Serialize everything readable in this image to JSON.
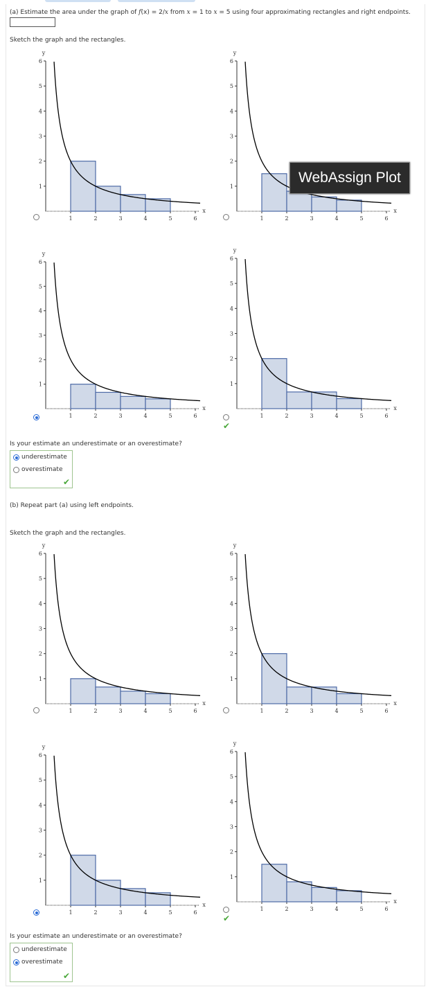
{
  "part_a": {
    "question_prefix": "(a) Estimate the area under the graph of ",
    "f_label": "f",
    "question_mid": "(x) = 2/",
    "x_var": "x",
    "question_from": " from ",
    "x_eq_1": "x",
    "question_eq1": " = 1 to ",
    "x_eq_5": "x",
    "question_end": " = 5 using four approximating rectangles and right endpoints.",
    "sketch_instruction": "Sketch the graph and the rectangles.",
    "estimate_question": "Is your estimate an underestimate or an overestimate?",
    "options": [
      "underestimate",
      "overestimate"
    ],
    "selected": "underestimate"
  },
  "part_b": {
    "question": "(b) Repeat part (a) using left endpoints.",
    "sketch_instruction": "Sketch the graph and the rectangles.",
    "estimate_question": "Is your estimate an underestimate or an overestimate?",
    "options": [
      "underestimate",
      "overestimate"
    ],
    "selected": "overestimate"
  },
  "tooltip": "WebAssign Plot",
  "axis": {
    "x_label": "x",
    "y_label": "y",
    "x_ticks": [
      "1",
      "2",
      "3",
      "4",
      "5",
      "6"
    ],
    "y_ticks": [
      "1",
      "2",
      "3",
      "4",
      "5",
      "6"
    ]
  },
  "plots": [
    {
      "id": "a1",
      "rect_heights": [
        2,
        1,
        0.6667,
        0.5
      ],
      "selected": false,
      "correct": false
    },
    {
      "id": "a2",
      "rect_heights": [
        1.5,
        0.8,
        0.5714,
        0.4444
      ],
      "selected": false,
      "correct": false
    },
    {
      "id": "a3",
      "rect_heights": [
        1,
        0.6667,
        0.5,
        0.4
      ],
      "selected": true,
      "correct": false
    },
    {
      "id": "a4",
      "rect_heights": [
        2,
        0.6667,
        0.6667,
        0.4
      ],
      "selected": false,
      "correct": true
    },
    {
      "id": "b1",
      "rect_heights": [
        1,
        0.6667,
        0.5,
        0.4
      ],
      "selected": false,
      "correct": false
    },
    {
      "id": "b2",
      "rect_heights": [
        2,
        0.6667,
        0.6667,
        0.4
      ],
      "selected": false,
      "correct": false
    },
    {
      "id": "b3",
      "rect_heights": [
        2,
        1,
        0.6667,
        0.5
      ],
      "selected": true,
      "correct": false
    },
    {
      "id": "b4",
      "rect_heights": [
        1.5,
        0.8,
        0.5714,
        0.4444
      ],
      "selected": false,
      "correct": true
    }
  ],
  "chart_data": [
    {
      "type": "area",
      "function": "2/x",
      "x_range": [
        0,
        6
      ],
      "ylim": [
        0,
        6
      ],
      "rectangles": {
        "x_starts": [
          1,
          2,
          3,
          4
        ],
        "heights": [
          2,
          1,
          0.6667,
          0.5
        ]
      }
    },
    {
      "type": "area",
      "function": "2/x",
      "x_range": [
        0,
        6
      ],
      "ylim": [
        0,
        6
      ],
      "rectangles": {
        "x_starts": [
          1,
          2,
          3,
          4
        ],
        "heights": [
          1.5,
          0.8,
          0.5714,
          0.4444
        ]
      }
    },
    {
      "type": "area",
      "function": "2/x",
      "x_range": [
        0,
        6
      ],
      "ylim": [
        0,
        6
      ],
      "rectangles": {
        "x_starts": [
          1,
          2,
          3,
          4
        ],
        "heights": [
          1,
          0.6667,
          0.5,
          0.4
        ]
      }
    },
    {
      "type": "area",
      "function": "2/x",
      "x_range": [
        0,
        6
      ],
      "ylim": [
        0,
        6
      ],
      "rectangles": {
        "x_starts": [
          1,
          2,
          3,
          4
        ],
        "heights": [
          2,
          0.6667,
          0.6667,
          0.4
        ]
      }
    },
    {
      "type": "area",
      "function": "2/x",
      "x_range": [
        0,
        6
      ],
      "ylim": [
        0,
        6
      ],
      "rectangles": {
        "x_starts": [
          1,
          2,
          3,
          4
        ],
        "heights": [
          1,
          0.6667,
          0.5,
          0.4
        ]
      }
    },
    {
      "type": "area",
      "function": "2/x",
      "x_range": [
        0,
        6
      ],
      "ylim": [
        0,
        6
      ],
      "rectangles": {
        "x_starts": [
          1,
          2,
          3,
          4
        ],
        "heights": [
          2,
          0.6667,
          0.6667,
          0.4
        ]
      }
    },
    {
      "type": "area",
      "function": "2/x",
      "x_range": [
        0,
        6
      ],
      "ylim": [
        0,
        6
      ],
      "rectangles": {
        "x_starts": [
          1,
          2,
          3,
          4
        ],
        "heights": [
          2,
          1,
          0.6667,
          0.5
        ]
      }
    },
    {
      "type": "area",
      "function": "2/x",
      "x_range": [
        0,
        6
      ],
      "ylim": [
        0,
        6
      ],
      "rectangles": {
        "x_starts": [
          1,
          2,
          3,
          4
        ],
        "heights": [
          1.5,
          0.8,
          0.5714,
          0.4444
        ]
      }
    }
  ]
}
